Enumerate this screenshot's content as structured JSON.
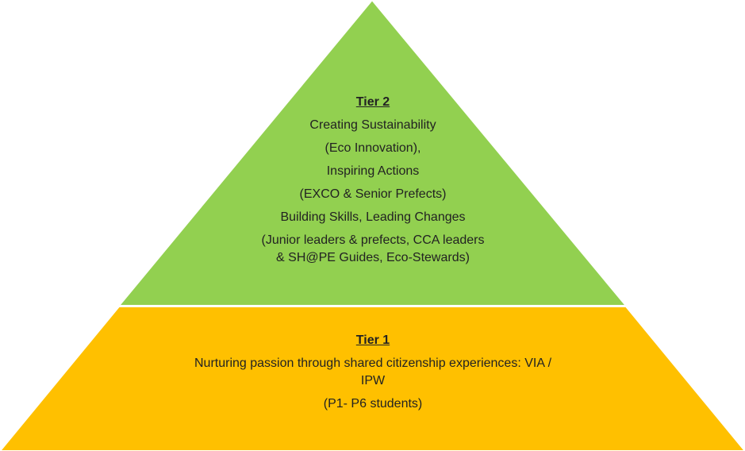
{
  "colors": {
    "tier2_fill": "#92D050",
    "tier1_fill": "#FFC000",
    "outline": "#ffffff"
  },
  "tier2": {
    "heading": "Tier 2",
    "lines": [
      "Creating Sustainability",
      "(Eco Innovation),",
      "Inspiring Actions",
      "(EXCO & Senior Prefects)",
      "Building Skills, Leading Changes",
      "(Junior leaders & prefects, CCA leaders",
      "& SH@PE Guides, Eco-Stewards)"
    ]
  },
  "tier1": {
    "heading": "Tier 1",
    "lines": [
      "Nurturing passion through shared citizenship experiences:  VIA /",
      "IPW",
      "(P1- P6 students)"
    ]
  }
}
